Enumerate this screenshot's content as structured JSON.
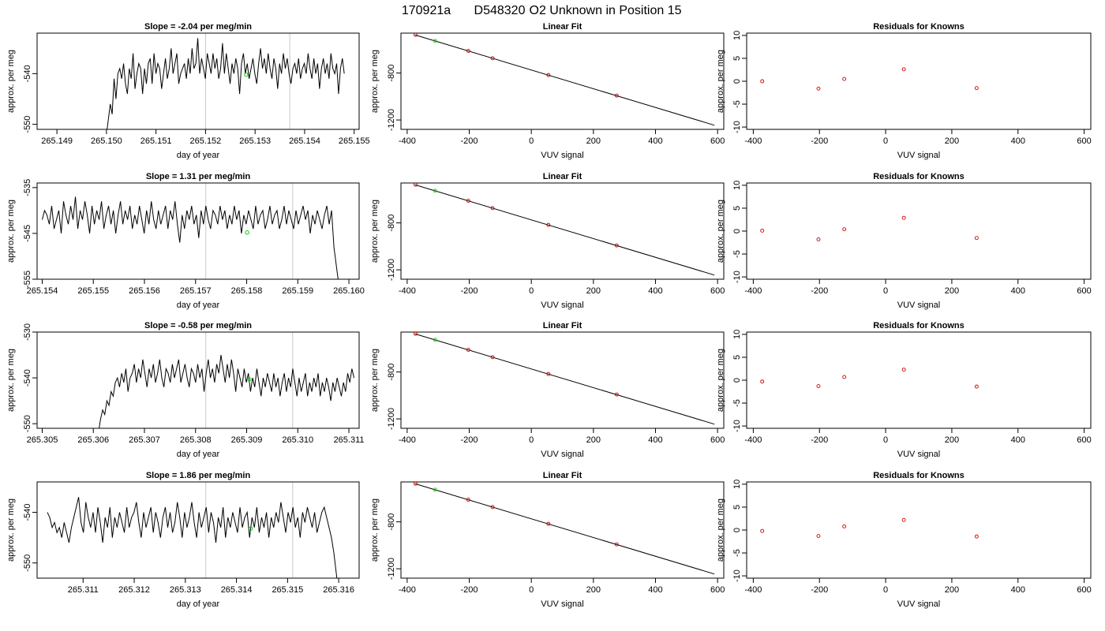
{
  "figure": {
    "title_parts": [
      "170921a",
      "D548320",
      "O2 Unknown in Position  15"
    ]
  },
  "colors": {
    "series_line": "#000000",
    "known_point": "#cc0000",
    "unknown_point": "#00cc00",
    "vertical_marker": "#c8c8c8"
  },
  "chart_data": [
    {
      "type": "line",
      "panel": "time-series-1",
      "title": "Slope =  -2.04  per meg/min",
      "xlabel": "day of year",
      "ylabel": "approx. per meg",
      "xlim": [
        265.1486,
        265.1551
      ],
      "ylim": [
        -551,
        -532
      ],
      "xticks": [
        "265.149",
        "265.150",
        "265.151",
        "265.152",
        "265.153",
        "265.154",
        "265.155"
      ],
      "yticks": [
        "-550",
        "-540"
      ],
      "vlines": [
        265.152,
        265.1537
      ],
      "series": [
        {
          "x_start": 265.15,
          "x_end": 265.1548,
          "y": [
            -552,
            -549,
            -546,
            -548,
            -541,
            -545,
            -540,
            -539,
            -541,
            -538,
            -542,
            -544,
            -539,
            -541,
            -536,
            -543,
            -540,
            -538,
            -539,
            -544,
            -539,
            -542,
            -538,
            -537,
            -542,
            -536,
            -540,
            -538,
            -539,
            -543,
            -540,
            -537,
            -541,
            -539,
            -535,
            -540,
            -538,
            -536,
            -542,
            -540,
            -539,
            -538,
            -541,
            -537,
            -540,
            -535,
            -539,
            -538,
            -533,
            -540,
            -537,
            -539,
            -541,
            -536,
            -538,
            -540,
            -536,
            -539,
            -537,
            -541,
            -539,
            -534,
            -540,
            -536,
            -539,
            -542,
            -538,
            -540,
            -537,
            -539,
            -544,
            -538,
            -536,
            -540,
            -538,
            -541,
            -539,
            -537,
            -540,
            -542,
            -538,
            -535,
            -539,
            -537,
            -540,
            -536,
            -539,
            -541,
            -537,
            -539,
            -543,
            -538,
            -540,
            -536,
            -539,
            -537,
            -540,
            -542,
            -539,
            -538,
            -540,
            -537,
            -541,
            -539,
            -538,
            -540,
            -536,
            -539,
            -541,
            -537,
            -540,
            -538,
            -543,
            -539,
            -537,
            -540,
            -538,
            -541,
            -536,
            -539,
            -540,
            -538,
            -544,
            -539,
            -537,
            -540
          ]
        }
      ],
      "marker": {
        "x": 265.15282,
        "y": -540.2
      }
    },
    {
      "type": "scatter",
      "panel": "linear-fit-1",
      "title": "Linear Fit",
      "xlabel": "VUV signal",
      "ylabel": "approx. per meg",
      "xlim": [
        -420,
        620
      ],
      "ylim": [
        -1280,
        -460
      ],
      "xticks": [
        -400,
        -200,
        0,
        200,
        400,
        600
      ],
      "yticks": [
        -1200,
        -800
      ],
      "fit_line": {
        "x": [
          -375,
          590
        ],
        "y": [
          -475,
          -1245
        ]
      },
      "knowns": [
        {
          "x": -373,
          "y": -475
        },
        {
          "x": -203,
          "y": -611
        },
        {
          "x": -125,
          "y": -674
        },
        {
          "x": 55,
          "y": -817
        },
        {
          "x": 275,
          "y": -992
        }
      ],
      "unknown": {
        "x": -310,
        "y": -526
      }
    },
    {
      "type": "scatter",
      "panel": "residuals-1",
      "title": "Residuals for Knowns",
      "xlabel": "VUV signal",
      "ylabel": "approx. per meg",
      "xlim": [
        -420,
        620
      ],
      "ylim": [
        -10.5,
        10.5
      ],
      "xticks": [
        -400,
        -200,
        0,
        200,
        400,
        600
      ],
      "yticks": [
        -10,
        -5,
        0,
        5,
        10
      ],
      "residuals": [
        {
          "x": -373,
          "y": 0.0
        },
        {
          "x": -203,
          "y": -1.6
        },
        {
          "x": -125,
          "y": 0.5
        },
        {
          "x": 55,
          "y": 2.6
        },
        {
          "x": 275,
          "y": -1.5
        }
      ]
    },
    {
      "type": "line",
      "panel": "time-series-2",
      "title": "Slope =  1.31  per meg/min",
      "xlabel": "day of year",
      "ylabel": "approx. per meg",
      "xlim": [
        265.1539,
        265.1602
      ],
      "ylim": [
        -555,
        -534
      ],
      "xticks": [
        "265.154",
        "265.155",
        "265.156",
        "265.157",
        "265.158",
        "265.159",
        "265.160"
      ],
      "yticks": [
        "-555",
        "-545",
        "-535"
      ],
      "vlines": [
        265.1572,
        265.1589
      ],
      "series": [
        {
          "x_start": 265.154,
          "x_end": 265.1598,
          "y": [
            -542,
            -540,
            -541,
            -543,
            -539,
            -544,
            -542,
            -540,
            -545,
            -538,
            -541,
            -543,
            -539,
            -542,
            -537,
            -544,
            -540,
            -542,
            -538,
            -541,
            -545,
            -539,
            -543,
            -540,
            -542,
            -538,
            -544,
            -541,
            -539,
            -543,
            -540,
            -545,
            -541,
            -538,
            -543,
            -540,
            -542,
            -539,
            -544,
            -541,
            -543,
            -539,
            -542,
            -545,
            -540,
            -543,
            -538,
            -542,
            -544,
            -540,
            -543,
            -541,
            -539,
            -544,
            -540,
            -542,
            -538,
            -543,
            -547,
            -541,
            -544,
            -540,
            -542,
            -539,
            -543,
            -541,
            -546,
            -540,
            -543,
            -539,
            -542,
            -544,
            -540,
            -541,
            -543,
            -539,
            -542,
            -540,
            -544,
            -541,
            -543,
            -539,
            -542,
            -540,
            -545,
            -541,
            -543,
            -540,
            -542,
            -544,
            -539,
            -543,
            -541,
            -540,
            -544,
            -542,
            -539,
            -543,
            -541,
            -540,
            -544,
            -542,
            -539,
            -543,
            -540,
            -542,
            -544,
            -540,
            -543,
            -541,
            -539,
            -542,
            -540,
            -545,
            -541,
            -543,
            -540,
            -542,
            -544,
            -541,
            -539,
            -543,
            -540,
            -548,
            -552,
            -556
          ]
        }
      ],
      "marker": {
        "x": 265.15801,
        "y": -544.8
      }
    },
    {
      "type": "scatter",
      "panel": "linear-fit-2",
      "title": "Linear Fit",
      "xlabel": "VUV signal",
      "ylabel": "approx. per meg",
      "xlim": [
        -420,
        620
      ],
      "ylim": [
        -1280,
        -460
      ],
      "xticks": [
        -400,
        -200,
        0,
        200,
        400,
        600
      ],
      "yticks": [
        -1200,
        -800
      ],
      "fit_line": {
        "x": [
          -375,
          590
        ],
        "y": [
          -475,
          -1245
        ]
      },
      "knowns": [
        {
          "x": -373,
          "y": -475
        },
        {
          "x": -203,
          "y": -611
        },
        {
          "x": -125,
          "y": -674
        },
        {
          "x": 55,
          "y": -817
        },
        {
          "x": 275,
          "y": -992
        }
      ],
      "unknown": {
        "x": -310,
        "y": -526
      }
    },
    {
      "type": "scatter",
      "panel": "residuals-2",
      "title": "Residuals for Knowns",
      "xlabel": "VUV signal",
      "ylabel": "approx. per meg",
      "xlim": [
        -420,
        620
      ],
      "ylim": [
        -10.5,
        10.5
      ],
      "xticks": [
        -400,
        -200,
        0,
        200,
        400,
        600
      ],
      "yticks": [
        -10,
        -5,
        0,
        5,
        10
      ],
      "residuals": [
        {
          "x": -373,
          "y": 0.1
        },
        {
          "x": -203,
          "y": -1.8
        },
        {
          "x": -125,
          "y": 0.4
        },
        {
          "x": 55,
          "y": 2.9
        },
        {
          "x": 275,
          "y": -1.5
        }
      ]
    },
    {
      "type": "line",
      "panel": "time-series-3",
      "title": "Slope =  -0.58  per meg/min",
      "xlabel": "day of year",
      "ylabel": "approx. per meg",
      "xlim": [
        265.3049,
        265.3112
      ],
      "ylim": [
        -551,
        -530
      ],
      "xticks": [
        "265.305",
        "265.306",
        "265.307",
        "265.308",
        "265.309",
        "265.310",
        "265.311"
      ],
      "yticks": [
        "-550",
        "-540",
        "-530"
      ],
      "vlines": [
        265.3082,
        265.3099
      ],
      "series": [
        {
          "x_start": 265.3061,
          "x_end": 265.3111,
          "y": [
            -552,
            -549,
            -547,
            -548,
            -545,
            -546,
            -543,
            -544,
            -541,
            -540,
            -542,
            -539,
            -541,
            -538,
            -543,
            -540,
            -539,
            -537,
            -541,
            -538,
            -540,
            -536,
            -539,
            -542,
            -538,
            -540,
            -537,
            -541,
            -539,
            -536,
            -540,
            -542,
            -538,
            -539,
            -541,
            -537,
            -540,
            -538,
            -536,
            -541,
            -539,
            -537,
            -540,
            -542,
            -538,
            -539,
            -541,
            -537,
            -540,
            -538,
            -543,
            -539,
            -536,
            -540,
            -538,
            -541,
            -537,
            -539,
            -535,
            -538,
            -541,
            -537,
            -540,
            -536,
            -539,
            -543,
            -538,
            -540,
            -542,
            -538,
            -541,
            -539,
            -543,
            -540,
            -542,
            -538,
            -541,
            -544,
            -540,
            -542,
            -539,
            -541,
            -543,
            -539,
            -542,
            -540,
            -544,
            -541,
            -539,
            -543,
            -540,
            -542,
            -538,
            -541,
            -544,
            -540,
            -543,
            -541,
            -539,
            -544,
            -541,
            -543,
            -540,
            -542,
            -539,
            -544,
            -541,
            -543,
            -540,
            -542,
            -545,
            -541,
            -543,
            -540,
            -542,
            -544,
            -541,
            -543,
            -539,
            -541,
            -538,
            -540
          ]
        }
      ],
      "marker": {
        "x": 265.30905,
        "y": -540.3
      }
    },
    {
      "type": "scatter",
      "panel": "linear-fit-3",
      "title": "Linear Fit",
      "xlabel": "VUV signal",
      "ylabel": "approx. per meg",
      "xlim": [
        -420,
        620
      ],
      "ylim": [
        -1280,
        -460
      ],
      "xticks": [
        -400,
        -200,
        0,
        200,
        400,
        600
      ],
      "yticks": [
        -1200,
        -800
      ],
      "fit_line": {
        "x": [
          -375,
          590
        ],
        "y": [
          -475,
          -1245
        ]
      },
      "knowns": [
        {
          "x": -373,
          "y": -475
        },
        {
          "x": -203,
          "y": -611
        },
        {
          "x": -125,
          "y": -674
        },
        {
          "x": 55,
          "y": -817
        },
        {
          "x": 275,
          "y": -992
        }
      ],
      "unknown": {
        "x": -310,
        "y": -526
      }
    },
    {
      "type": "scatter",
      "panel": "residuals-3",
      "title": "Residuals for Knowns",
      "xlabel": "VUV signal",
      "ylabel": "approx. per meg",
      "xlim": [
        -420,
        620
      ],
      "ylim": [
        -10.5,
        10.5
      ],
      "xticks": [
        -400,
        -200,
        0,
        200,
        400,
        600
      ],
      "yticks": [
        -10,
        -5,
        0,
        5,
        10
      ],
      "residuals": [
        {
          "x": -373,
          "y": -0.3
        },
        {
          "x": -203,
          "y": -1.3
        },
        {
          "x": -125,
          "y": 0.7
        },
        {
          "x": 55,
          "y": 2.3
        },
        {
          "x": 275,
          "y": -1.4
        }
      ]
    },
    {
      "type": "line",
      "panel": "time-series-4",
      "title": "Slope =  1.86  per meg/min",
      "xlabel": "day of year",
      "ylabel": "approx. per meg",
      "xlim": [
        265.3101,
        265.3164
      ],
      "ylim": [
        -553,
        -534
      ],
      "xticks": [
        "265.311",
        "265.312",
        "265.313",
        "265.314",
        "265.315",
        "265.316"
      ],
      "yticks": [
        "-550",
        "-540"
      ],
      "vlines": [
        265.3134,
        265.3151
      ],
      "series": [
        {
          "x_start": 265.3103,
          "x_end": 265.316,
          "y": [
            -540,
            -541,
            -543,
            -542,
            -544,
            -543,
            -545,
            -542,
            -544,
            -546,
            -543,
            -541,
            -539,
            -537,
            -542,
            -544,
            -538,
            -541,
            -543,
            -540,
            -544,
            -539,
            -542,
            -546,
            -541,
            -543,
            -539,
            -545,
            -541,
            -543,
            -540,
            -542,
            -544,
            -539,
            -543,
            -541,
            -540,
            -538,
            -542,
            -545,
            -540,
            -543,
            -541,
            -539,
            -544,
            -540,
            -542,
            -545,
            -541,
            -539,
            -543,
            -540,
            -544,
            -542,
            -538,
            -541,
            -545,
            -540,
            -543,
            -541,
            -538,
            -542,
            -545,
            -540,
            -543,
            -541,
            -539,
            -544,
            -540,
            -542,
            -546,
            -541,
            -543,
            -539,
            -545,
            -541,
            -543,
            -540,
            -542,
            -544,
            -539,
            -543,
            -541,
            -540,
            -545,
            -541,
            -543,
            -539,
            -544,
            -541,
            -543,
            -540,
            -545,
            -541,
            -543,
            -540,
            -542,
            -538,
            -541,
            -544,
            -540,
            -542,
            -539,
            -543,
            -541,
            -545,
            -540,
            -542,
            -539,
            -541,
            -543,
            -540,
            -544,
            -542,
            -540,
            -539,
            -541,
            -543,
            -545,
            -548,
            -552,
            -556
          ]
        }
      ],
      "marker": {
        "x": 265.31428,
        "y": -543.2
      }
    },
    {
      "type": "scatter",
      "panel": "linear-fit-4",
      "title": "Linear Fit",
      "xlabel": "VUV signal",
      "ylabel": "approx. per meg",
      "xlim": [
        -420,
        620
      ],
      "ylim": [
        -1280,
        -460
      ],
      "xticks": [
        -400,
        -200,
        0,
        200,
        400,
        600
      ],
      "yticks": [
        -1200,
        -800
      ],
      "fit_line": {
        "x": [
          -375,
          590
        ],
        "y": [
          -475,
          -1245
        ]
      },
      "knowns": [
        {
          "x": -373,
          "y": -475
        },
        {
          "x": -203,
          "y": -611
        },
        {
          "x": -125,
          "y": -674
        },
        {
          "x": 55,
          "y": -817
        },
        {
          "x": 275,
          "y": -992
        }
      ],
      "unknown": {
        "x": -310,
        "y": -526
      }
    },
    {
      "type": "scatter",
      "panel": "residuals-4",
      "title": "Residuals for Knowns",
      "xlabel": "VUV signal",
      "ylabel": "approx. per meg",
      "xlim": [
        -420,
        620
      ],
      "ylim": [
        -10.5,
        10.5
      ],
      "xticks": [
        -400,
        -200,
        0,
        200,
        400,
        600
      ],
      "yticks": [
        -10,
        -5,
        0,
        5,
        10
      ],
      "residuals": [
        {
          "x": -373,
          "y": -0.2
        },
        {
          "x": -203,
          "y": -1.3
        },
        {
          "x": -125,
          "y": 0.8
        },
        {
          "x": 55,
          "y": 2.2
        },
        {
          "x": 275,
          "y": -1.4
        }
      ]
    }
  ]
}
